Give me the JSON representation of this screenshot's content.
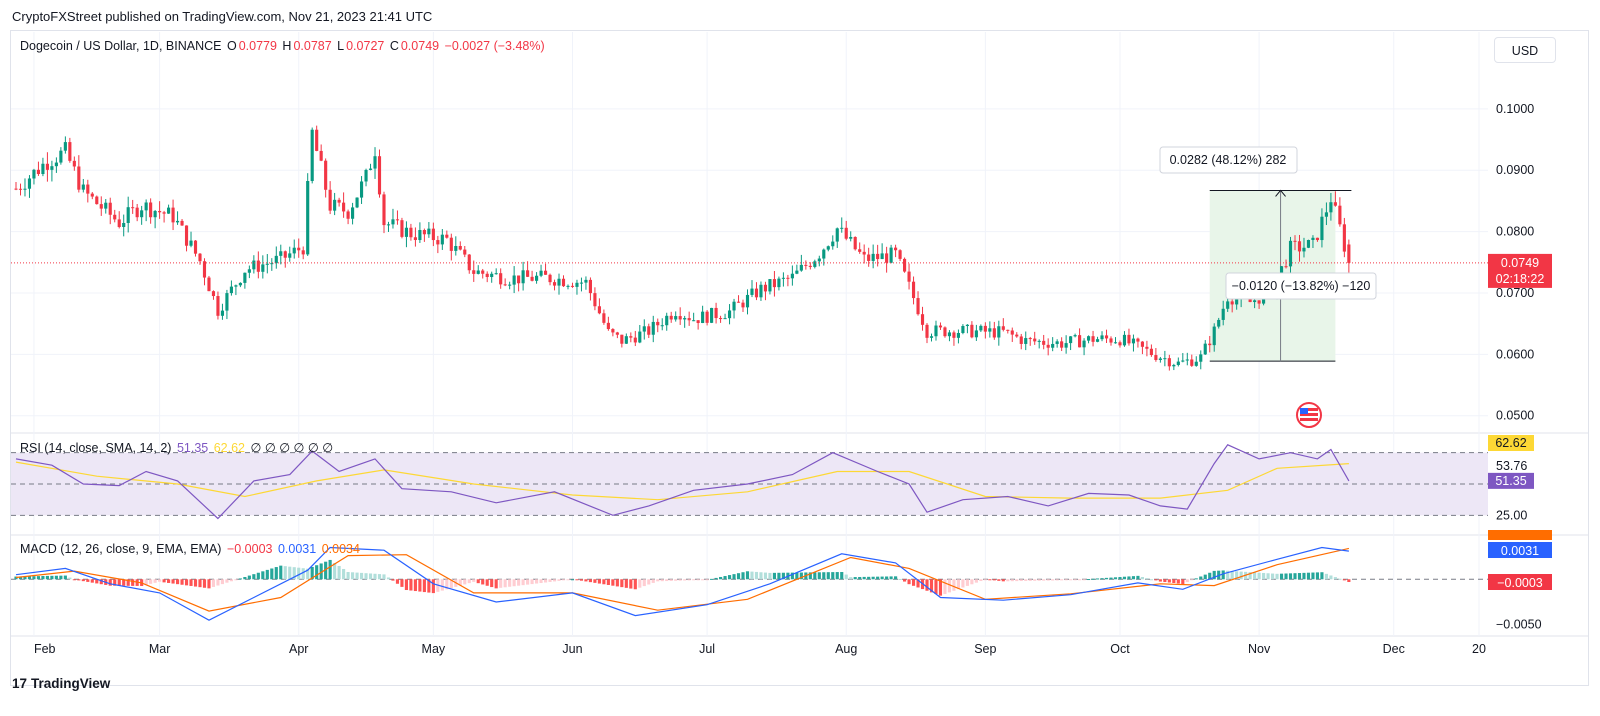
{
  "header": {
    "publisher": "CryptoFXStreet published on TradingView.com, Nov 21, 2023 21:41 UTC"
  },
  "currency_button": "USD",
  "brand": {
    "logo": "17",
    "name": "TradingView"
  },
  "legend": {
    "symbol": "Dogecoin / US Dollar, 1D, BINANCE",
    "open_label": "O",
    "open": "0.0779",
    "high_label": "H",
    "high": "0.0787",
    "low_label": "L",
    "low": "0.0727",
    "close_label": "C",
    "close": "0.0749",
    "change": "−0.0027 (−3.48%)",
    "rsi_title": "RSI (14, close, SMA, 14, 2)",
    "rsi_value": "51.35",
    "rsi_sma": "62.62",
    "rsi_extra": "∅ ∅ ∅ ∅ ∅ ∅",
    "macd_title": "MACD (12, 26, close, 9, EMA, EMA)",
    "macd_hist": "−0.0003",
    "macd_line": "0.0031",
    "macd_signal": "0.0034"
  },
  "colors": {
    "up": "#089981",
    "down": "#f23645",
    "rsi": "#7e57c2",
    "rsi_ma": "#fdd835",
    "macd": "#2962ff",
    "signal": "#ff6d00",
    "band": "#ede7f6",
    "range_fill": "#e8f5e9"
  },
  "chart_data": [
    {
      "type": "candlestick",
      "title": "Dogecoin / US Dollar, 1D, BINANCE",
      "ylim": [
        0.048,
        0.106
      ],
      "yticks": [
        "0.1000",
        "0.0900",
        "0.0800",
        "0.0700",
        "0.0600",
        "0.0500"
      ],
      "ytick_values": [
        0.1,
        0.09,
        0.08,
        0.07,
        0.06,
        0.05
      ],
      "xticks": [
        "Feb",
        "Mar",
        "Apr",
        "May",
        "Jun",
        "Jul",
        "Aug",
        "Sep",
        "Oct",
        "Nov",
        "Dec",
        "20"
      ],
      "xtick_dates": [
        "2023-02-01",
        "2023-03-01",
        "2023-04-01",
        "2023-05-01",
        "2023-06-01",
        "2023-07-01",
        "2023-08-01",
        "2023-09-01",
        "2023-10-01",
        "2023-11-01",
        "2023-12-01",
        "2023-12-20"
      ],
      "series_dates": [
        "2023-01-28",
        "2023-11-21"
      ],
      "approx_close_path": [
        [
          "2023-01-28",
          0.087
        ],
        [
          "2023-02-04",
          0.0915
        ],
        [
          "2023-02-08",
          0.093
        ],
        [
          "2023-02-12",
          0.0865
        ],
        [
          "2023-02-20",
          0.0815
        ],
        [
          "2023-02-25",
          0.0843
        ],
        [
          "2023-03-04",
          0.0825
        ],
        [
          "2023-03-10",
          0.0752
        ],
        [
          "2023-03-14",
          0.0672
        ],
        [
          "2023-03-20",
          0.0738
        ],
        [
          "2023-03-28",
          0.0755
        ],
        [
          "2023-04-02",
          0.0775
        ],
        [
          "2023-04-04",
          0.096
        ],
        [
          "2023-04-08",
          0.0842
        ],
        [
          "2023-04-12",
          0.0833
        ],
        [
          "2023-04-16",
          0.0888
        ],
        [
          "2023-04-18",
          0.0935
        ],
        [
          "2023-04-20",
          0.0815
        ],
        [
          "2023-04-26",
          0.0797
        ],
        [
          "2023-05-04",
          0.0787
        ],
        [
          "2023-05-10",
          0.0735
        ],
        [
          "2023-05-18",
          0.0724
        ],
        [
          "2023-05-26",
          0.0725
        ],
        [
          "2023-06-04",
          0.0717
        ],
        [
          "2023-06-09",
          0.0635
        ],
        [
          "2023-06-12",
          0.0622
        ],
        [
          "2023-06-18",
          0.0638
        ],
        [
          "2023-06-24",
          0.0672
        ],
        [
          "2023-06-28",
          0.0658
        ],
        [
          "2023-07-06",
          0.067
        ],
        [
          "2023-07-13",
          0.0706
        ],
        [
          "2023-07-20",
          0.0725
        ],
        [
          "2023-07-26",
          0.0765
        ],
        [
          "2023-07-30",
          0.0805
        ],
        [
          "2023-08-05",
          0.0755
        ],
        [
          "2023-08-12",
          0.0762
        ],
        [
          "2023-08-17",
          0.0675
        ],
        [
          "2023-08-19",
          0.0638
        ],
        [
          "2023-08-26",
          0.0638
        ],
        [
          "2023-09-05",
          0.0636
        ],
        [
          "2023-09-10",
          0.0622
        ],
        [
          "2023-09-18",
          0.0618
        ],
        [
          "2023-09-25",
          0.0625
        ],
        [
          "2023-10-01",
          0.0625
        ],
        [
          "2023-10-08",
          0.0602
        ],
        [
          "2023-10-14",
          0.0585
        ],
        [
          "2023-10-19",
          0.0595
        ],
        [
          "2023-10-22",
          0.0638
        ],
        [
          "2023-10-25",
          0.0695
        ],
        [
          "2023-10-30",
          0.0685
        ],
        [
          "2023-11-04",
          0.0705
        ],
        [
          "2023-11-08",
          0.0772
        ],
        [
          "2023-11-13",
          0.0778
        ],
        [
          "2023-11-17",
          0.0855
        ],
        [
          "2023-11-19",
          0.0805
        ],
        [
          "2023-11-21",
          0.0749
        ]
      ],
      "price_line": {
        "value": 0.0749,
        "label": "0.0749",
        "countdown": "02:18:22"
      },
      "range_annotation": {
        "from": "2023-10-21",
        "to": "2023-11-18",
        "low": 0.0589,
        "high": 0.0867,
        "up_label": "0.0282 (48.12%) 282",
        "down_label": "−0.0120 (−13.82%) −120"
      }
    },
    {
      "type": "line",
      "title": "RSI (14, close, SMA, 14, 2)",
      "ylim": [
        20,
        80
      ],
      "levels": [
        70,
        50,
        30
      ],
      "yticks": [
        "53.76",
        "25.00"
      ],
      "ytick_values": [
        61.5,
        30
      ],
      "last_labels": {
        "rsi": "51.35",
        "sma": "62.62"
      },
      "series": [
        {
          "name": "RSI",
          "points": [
            [
              "2023-01-28",
              66
            ],
            [
              "2023-02-05",
              62
            ],
            [
              "2023-02-12",
              50
            ],
            [
              "2023-02-20",
              49
            ],
            [
              "2023-02-26",
              58
            ],
            [
              "2023-03-05",
              52
            ],
            [
              "2023-03-14",
              28
            ],
            [
              "2023-03-22",
              52
            ],
            [
              "2023-03-30",
              56
            ],
            [
              "2023-04-04",
              71
            ],
            [
              "2023-04-10",
              58
            ],
            [
              "2023-04-18",
              66
            ],
            [
              "2023-04-24",
              47
            ],
            [
              "2023-05-05",
              45
            ],
            [
              "2023-05-15",
              38
            ],
            [
              "2023-05-28",
              45
            ],
            [
              "2023-06-10",
              30
            ],
            [
              "2023-06-18",
              36
            ],
            [
              "2023-06-28",
              46
            ],
            [
              "2023-07-10",
              50
            ],
            [
              "2023-07-20",
              56
            ],
            [
              "2023-07-29",
              70
            ],
            [
              "2023-08-08",
              58
            ],
            [
              "2023-08-15",
              50
            ],
            [
              "2023-08-19",
              32
            ],
            [
              "2023-08-27",
              40
            ],
            [
              "2023-09-06",
              42
            ],
            [
              "2023-09-15",
              36
            ],
            [
              "2023-09-24",
              44
            ],
            [
              "2023-10-03",
              43
            ],
            [
              "2023-10-10",
              36
            ],
            [
              "2023-10-16",
              34
            ],
            [
              "2023-10-22",
              63
            ],
            [
              "2023-10-25",
              75
            ],
            [
              "2023-11-01",
              66
            ],
            [
              "2023-11-08",
              70
            ],
            [
              "2023-11-14",
              66
            ],
            [
              "2023-11-17",
              72
            ],
            [
              "2023-11-21",
              52
            ]
          ]
        },
        {
          "name": "RSI-based MA",
          "points": [
            [
              "2023-01-28",
              64
            ],
            [
              "2023-02-15",
              55
            ],
            [
              "2023-03-05",
              50
            ],
            [
              "2023-03-20",
              42
            ],
            [
              "2023-04-05",
              52
            ],
            [
              "2023-04-20",
              59
            ],
            [
              "2023-05-10",
              50
            ],
            [
              "2023-06-01",
              43
            ],
            [
              "2023-06-20",
              40
            ],
            [
              "2023-07-10",
              45
            ],
            [
              "2023-07-30",
              58
            ],
            [
              "2023-08-15",
              58
            ],
            [
              "2023-09-01",
              42
            ],
            [
              "2023-09-20",
              41
            ],
            [
              "2023-10-10",
              41
            ],
            [
              "2023-10-25",
              46
            ],
            [
              "2023-11-05",
              60
            ],
            [
              "2023-11-21",
              63
            ]
          ]
        }
      ]
    },
    {
      "type": "line+bar",
      "title": "MACD (12, 26, close, 9, EMA, EMA)",
      "ylim": [
        -0.0058,
        0.0052
      ],
      "yticks": [
        "−0.0050"
      ],
      "ytick_values": [
        -0.005
      ],
      "last_labels": {
        "signal": "0.0034",
        "macd": "0.0031",
        "histogram": "−0.0003"
      },
      "series": [
        {
          "name": "MACD",
          "points": [
            [
              "2023-01-28",
              0.0005
            ],
            [
              "2023-02-08",
              0.0012
            ],
            [
              "2023-02-18",
              -0.0005
            ],
            [
              "2023-03-01",
              -0.0015
            ],
            [
              "2023-03-12",
              -0.0045
            ],
            [
              "2023-03-22",
              -0.002
            ],
            [
              "2023-04-03",
              0.001
            ],
            [
              "2023-04-08",
              0.0035
            ],
            [
              "2023-04-20",
              0.0032
            ],
            [
              "2023-05-01",
              -0.0005
            ],
            [
              "2023-05-15",
              -0.0025
            ],
            [
              "2023-06-01",
              -0.0015
            ],
            [
              "2023-06-15",
              -0.004
            ],
            [
              "2023-07-01",
              -0.0028
            ],
            [
              "2023-07-15",
              -0.0005
            ],
            [
              "2023-07-31",
              0.0028
            ],
            [
              "2023-08-12",
              0.0018
            ],
            [
              "2023-08-22",
              -0.002
            ],
            [
              "2023-09-05",
              -0.0023
            ],
            [
              "2023-09-20",
              -0.0017
            ],
            [
              "2023-10-05",
              -0.0004
            ],
            [
              "2023-10-15",
              -0.0011
            ],
            [
              "2023-10-24",
              0.0006
            ],
            [
              "2023-11-05",
              0.0022
            ],
            [
              "2023-11-15",
              0.0035
            ],
            [
              "2023-11-21",
              0.0031
            ]
          ]
        },
        {
          "name": "Signal",
          "points": [
            [
              "2023-01-28",
              0.0002
            ],
            [
              "2023-02-10",
              0.0009
            ],
            [
              "2023-02-25",
              -0.0004
            ],
            [
              "2023-03-12",
              -0.0035
            ],
            [
              "2023-03-28",
              -0.002
            ],
            [
              "2023-04-12",
              0.0026
            ],
            [
              "2023-04-25",
              0.0027
            ],
            [
              "2023-05-10",
              -0.0015
            ],
            [
              "2023-06-01",
              -0.0015
            ],
            [
              "2023-06-20",
              -0.0034
            ],
            [
              "2023-07-10",
              -0.0022
            ],
            [
              "2023-08-02",
              0.0024
            ],
            [
              "2023-08-15",
              0.0012
            ],
            [
              "2023-09-01",
              -0.0022
            ],
            [
              "2023-09-20",
              -0.0016
            ],
            [
              "2023-10-10",
              -0.0005
            ],
            [
              "2023-10-22",
              -0.0007
            ],
            [
              "2023-11-05",
              0.0016
            ],
            [
              "2023-11-21",
              0.0034
            ]
          ]
        }
      ]
    }
  ]
}
